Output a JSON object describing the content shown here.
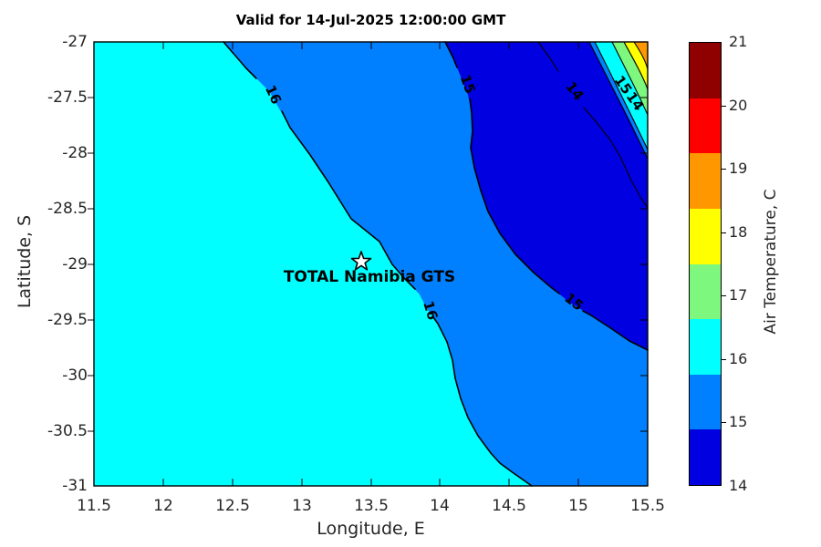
{
  "title": "Valid for 14-Jul-2025 12:00:00 GMT",
  "axes": {
    "x": {
      "label": "Longitude, E",
      "ticks": [
        "11.5",
        "12",
        "12.5",
        "13",
        "13.5",
        "14",
        "14.5",
        "15",
        "15.5"
      ]
    },
    "y": {
      "label": "Latitude, S",
      "ticks": [
        "-27",
        "-27.5",
        "-28",
        "-28.5",
        "-29",
        "-29.5",
        "-30",
        "-30.5",
        "-31"
      ]
    }
  },
  "colorbar": {
    "label": "Air Temperature, C",
    "tick_labels": [
      "21",
      "20",
      "19",
      "18",
      "17",
      "16",
      "15",
      "14"
    ],
    "band_colors_top_to_bottom": [
      "#8F0000",
      "#FF0000",
      "#FF9800",
      "#FFFF00",
      "#7DF77D",
      "#00FFFF",
      "#0080FF",
      "#0000E0"
    ]
  },
  "colors": {
    "c14": "#0000E0",
    "c15": "#0080FF",
    "c16": "#00FFFF",
    "c17": "#7DF77D",
    "c18": "#FFFF00",
    "c19": "#FF9800",
    "contour_line": "#000000"
  },
  "marker": {
    "label": "TOTAL Namibia GTS"
  },
  "contour_labels": [
    {
      "text": "16"
    },
    {
      "text": "16"
    },
    {
      "text": "15"
    },
    {
      "text": "15"
    },
    {
      "text": "14"
    },
    {
      "text": "15"
    },
    {
      "text": "14"
    }
  ],
  "chart_data": {
    "type": "heatmap",
    "variant": "filled_contour_map",
    "title": "Valid for 14-Jul-2025 12:00:00 GMT",
    "xlabel": "Longitude, E",
    "ylabel": "Latitude, S",
    "xlim": [
      11.5,
      15.5
    ],
    "ylim": [
      -31,
      -27
    ],
    "x_ticks": [
      11.5,
      12,
      12.5,
      13,
      13.5,
      14,
      14.5,
      15,
      15.5
    ],
    "y_ticks": [
      -27,
      -27.5,
      -28,
      -28.5,
      -29,
      -29.5,
      -30,
      -30.5,
      -31
    ],
    "colorbar": {
      "label": "Air Temperature, C",
      "min": 14,
      "max": 21,
      "n_bands": 8,
      "tick_values": [
        21,
        20,
        19,
        18,
        17,
        16,
        15,
        14
      ]
    },
    "labeled_isolines_C": [
      14,
      15,
      16
    ],
    "isolines": [
      {
        "level": 16,
        "approx_points_lon_lat": [
          [
            12.44,
            -27.0
          ],
          [
            12.77,
            -27.44
          ],
          [
            13.2,
            -28.12
          ],
          [
            13.57,
            -28.79
          ],
          [
            13.85,
            -29.12
          ],
          [
            14.0,
            -29.42
          ],
          [
            14.11,
            -29.97
          ],
          [
            14.31,
            -30.47
          ],
          [
            14.66,
            -31.0
          ]
        ]
      },
      {
        "level": 15,
        "approx_points_lon_lat": [
          [
            14.04,
            -27.0
          ],
          [
            14.23,
            -27.43
          ],
          [
            14.22,
            -27.95
          ],
          [
            14.37,
            -28.52
          ],
          [
            14.87,
            -29.07
          ],
          [
            15.17,
            -29.35
          ],
          [
            15.5,
            -29.78
          ]
        ]
      },
      {
        "level": 14,
        "approx_points_lon_lat": [
          [
            14.71,
            -27.0
          ],
          [
            14.95,
            -27.43
          ],
          [
            15.17,
            -27.87
          ],
          [
            15.45,
            -28.44
          ],
          [
            15.5,
            -28.49
          ]
        ]
      }
    ],
    "regions": [
      {
        "band_C": "15.75-16.625",
        "color": "#00FFFF",
        "where": "southwest/coastal (left of 16-isoline)"
      },
      {
        "band_C": "14.875-15.75",
        "color": "#0080FF",
        "where": "central band between 16- and 15-isolines and bottom-right"
      },
      {
        "band_C": "14.0-14.875",
        "color": "#0000E0",
        "where": "northeast cold pool"
      },
      {
        "band_C": "15.75-19.25",
        "color": "gradient cyan-green-yellow-orange",
        "where": "far northeast corner warm gradient"
      }
    ],
    "marker": {
      "x": 13.43,
      "y": -28.98,
      "symbol": "star",
      "label": "TOTAL Namibia GTS"
    }
  }
}
